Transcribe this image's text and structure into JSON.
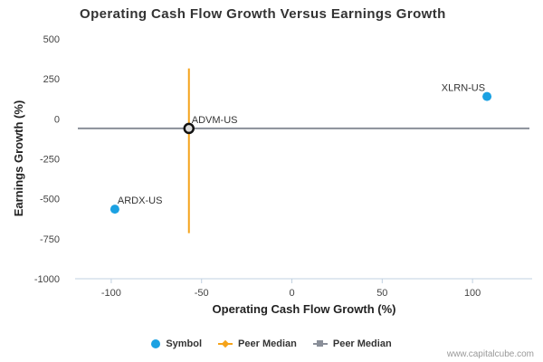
{
  "chart_data": {
    "type": "scatter",
    "title": "Operating Cash Flow Growth Versus Earnings Growth",
    "xlabel": "Operating Cash Flow Growth (%)",
    "ylabel": "Earnings Growth (%)",
    "xlim": [
      -120,
      133
    ],
    "ylim": [
      -1000,
      500
    ],
    "x_ticks": [
      -100,
      -50,
      0,
      50,
      100
    ],
    "x_tick_labels": [
      "-100",
      "-50",
      "0",
      "50",
      "100"
    ],
    "y_ticks": [
      500,
      250,
      0,
      -250,
      -500,
      -750,
      -1000
    ],
    "y_tick_labels": [
      "500",
      "250",
      "0",
      "-250",
      "-500",
      "-750",
      "-1000"
    ],
    "series": [
      {
        "name": "Symbol",
        "color": "#1ba1e2",
        "points": [
          {
            "label": "XLRN-US",
            "x": 108,
            "y": 140
          },
          {
            "label": "ADVM-US",
            "x": -57,
            "y": -60
          },
          {
            "label": "ARDX-US",
            "x": -98,
            "y": -565
          }
        ]
      }
    ],
    "peer_median": {
      "x": -57,
      "y": -60,
      "vertical_line_y_range": [
        -715,
        315
      ],
      "x_median_color": "#f5a31a",
      "y_median_color": "#8a8f99"
    },
    "legend": {
      "placement": "bottom-center",
      "items": [
        {
          "label": "Symbol",
          "marker": "circle",
          "color": "#1ba1e2"
        },
        {
          "label": "Peer Median",
          "marker": "diamond-line",
          "color": "#f5a31a"
        },
        {
          "label": "Peer Median",
          "marker": "square-line",
          "color": "#8a8f99"
        }
      ]
    },
    "grid": false
  },
  "credit": "www.capitalcube.com"
}
